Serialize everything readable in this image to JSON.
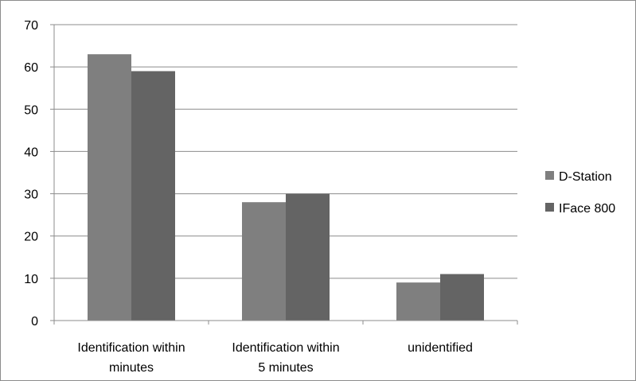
{
  "chart_data": {
    "type": "bar",
    "title": "",
    "xlabel": "",
    "ylabel": "",
    "ylim": [
      0,
      70
    ],
    "yticks": [
      0,
      10,
      20,
      30,
      40,
      50,
      60,
      70
    ],
    "grid": true,
    "legend_position": "right",
    "categories": [
      [
        "Identification within",
        "minutes"
      ],
      [
        "Identification within",
        "5 minutes"
      ],
      [
        "unidentified"
      ]
    ],
    "series": [
      {
        "name": "D-Station",
        "color": "#7f7f7f",
        "values": [
          63,
          28,
          9
        ]
      },
      {
        "name": "IFace 800",
        "color": "#646464",
        "values": [
          59,
          30,
          11
        ]
      }
    ]
  }
}
